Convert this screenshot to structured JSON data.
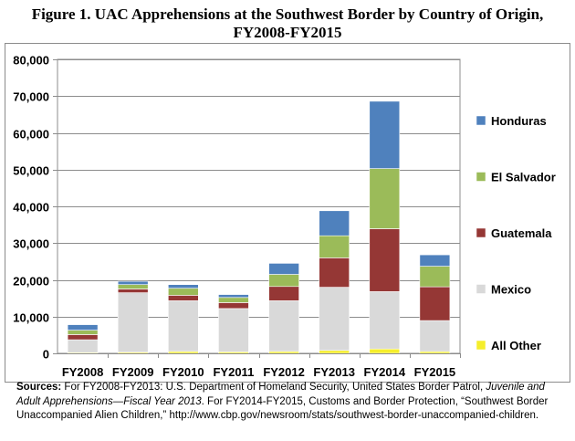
{
  "title": {
    "line1": "Figure 1. UAC Apprehensions at the Southwest Border by Country of Origin,",
    "line2": "FY2008-FY2015"
  },
  "chart_data": {
    "type": "bar",
    "stacked": true,
    "categories": [
      "FY2008",
      "FY2009",
      "FY2010",
      "FY2011",
      "FY2012",
      "FY2013",
      "FY2014",
      "FY2015"
    ],
    "ylim": [
      0,
      80000
    ],
    "yticks": [
      0,
      10000,
      20000,
      30000,
      40000,
      50000,
      60000,
      70000,
      80000
    ],
    "ytick_labels": [
      "0",
      "10,000",
      "20,000",
      "30,000",
      "40,000",
      "50,000",
      "60,000",
      "70,000",
      "80,000"
    ],
    "xlabel": "",
    "ylabel": "",
    "grid": true,
    "legend_position": "right",
    "series": [
      {
        "name": "All Other",
        "color": "#F5EE2B",
        "values": [
          200,
          300,
          500,
          400,
          500,
          800,
          1200,
          500
        ]
      },
      {
        "name": "Mexico",
        "color": "#D9D9D9",
        "values": [
          3500,
          16200,
          13800,
          11800,
          13800,
          17200,
          15600,
          8400
        ]
      },
      {
        "name": "Guatemala",
        "color": "#953735",
        "values": [
          1400,
          1000,
          1500,
          1600,
          3900,
          8000,
          17100,
          9200
        ]
      },
      {
        "name": "El Salvador",
        "color": "#9BBB59",
        "values": [
          1200,
          1200,
          1900,
          1400,
          3300,
          6000,
          16400,
          5600
        ]
      },
      {
        "name": "Honduras",
        "color": "#4F81BD",
        "values": [
          1500,
          900,
          1000,
          800,
          3000,
          6800,
          18300,
          3100
        ]
      }
    ]
  },
  "source": {
    "label": "Sources:",
    "text1": " For FY2008-FY2013: U.S. Department of Homeland Security, United States Border Patrol, ",
    "italic": "Juvenile and Adult Apprehensions—Fiscal Year 2013",
    "text2": ". For FY2014-FY2015, Customs and Border Protection, “Southwest Border Unaccompanied Alien Children,” http://www.cbp.gov/newsroom/stats/southwest-border-unaccompanied-children."
  }
}
